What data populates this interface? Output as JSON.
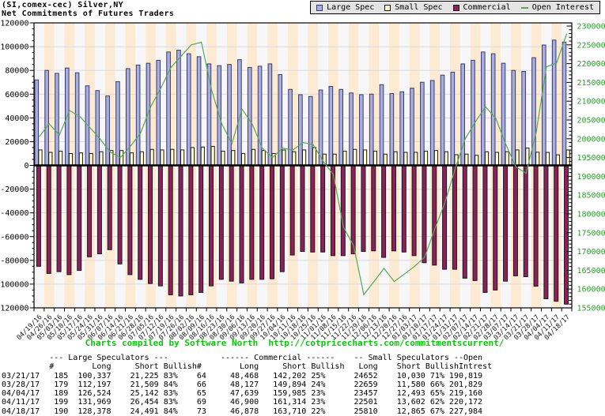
{
  "title": {
    "line1": "(SI,comex-cec) Silver,NY",
    "line2": "Net Commitments of Futures Traders"
  },
  "legend": [
    {
      "label": "Large Spec",
      "swatch": "square",
      "fill": "#a9aedd",
      "border": "#3a3a6e"
    },
    {
      "label": "Small Spec",
      "swatch": "square",
      "fill": "#ffffd0",
      "border": "#1a1a1a"
    },
    {
      "label": "Commercial",
      "swatch": "square",
      "fill": "#8b2159",
      "border": "#1a1a1a"
    },
    {
      "label": "Open Interest",
      "swatch": "line",
      "fill": "#58a858",
      "border": "#58a858"
    }
  ],
  "chart_data": {
    "type": "bar",
    "title": "Net Commitments of Futures Traders",
    "categories": [
      "04/19/16",
      "04/26/16",
      "05/03/16",
      "05/10/16",
      "05/17/16",
      "05/24/16",
      "05/31/16",
      "06/07/16",
      "06/14/16",
      "06/21/16",
      "06/28/16",
      "07/05/16",
      "07/12/16",
      "07/19/16",
      "07/26/16",
      "08/02/16",
      "08/09/16",
      "08/16/16",
      "08/23/16",
      "08/30/16",
      "09/06/16",
      "09/13/16",
      "09/20/16",
      "09/27/16",
      "10/04/16",
      "10/11/16",
      "10/18/16",
      "10/25/16",
      "11/01/16",
      "11/08/16",
      "11/15/16",
      "11/22/16",
      "11/29/16",
      "12/06/16",
      "12/13/16",
      "12/20/16",
      "12/27/16",
      "01/03/17",
      "01/10/17",
      "01/17/17",
      "01/24/17",
      "01/31/17",
      "02/07/17",
      "02/14/17",
      "02/21/17",
      "02/28/17",
      "03/07/17",
      "03/14/17",
      "03/21/17",
      "03/28/17",
      "04/04/17",
      "04/11/17",
      "04/18/17"
    ],
    "series": [
      {
        "name": "Large Spec",
        "type": "bar",
        "axis": "left",
        "color": "#a9aedd",
        "stroke": "#3a3a6e",
        "values": [
          72000,
          80000,
          77500,
          82000,
          78000,
          67000,
          63000,
          58500,
          70500,
          81500,
          84500,
          86000,
          88500,
          95500,
          97000,
          94000,
          91500,
          85500,
          84000,
          85000,
          89000,
          82500,
          83500,
          85500,
          76500,
          64000,
          59500,
          58000,
          63500,
          66500,
          64000,
          61000,
          59500,
          60000,
          68000,
          60500,
          62000,
          65000,
          70000,
          71500,
          76000,
          78500,
          85500,
          88500,
          95500,
          94000,
          86000,
          80000,
          79112,
          90688,
          101382,
          105515,
          103887
        ]
      },
      {
        "name": "Small Spec",
        "type": "bar",
        "axis": "left",
        "color": "#ffffd0",
        "stroke": "#1a1a1a",
        "values": [
          13000,
          11000,
          12000,
          10000,
          10500,
          10000,
          11500,
          12500,
          12500,
          10500,
          11500,
          13500,
          13000,
          13500,
          13000,
          15000,
          15500,
          16000,
          12000,
          12500,
          10000,
          13500,
          12500,
          10000,
          13000,
          11500,
          13000,
          15000,
          9500,
          9500,
          12000,
          13500,
          13000,
          12000,
          9500,
          11500,
          11000,
          11000,
          12000,
          12500,
          11500,
          9000,
          9500,
          8500,
          11500,
          11000,
          11500,
          13000,
          14622,
          11079,
          10964,
          8899,
          12945
        ]
      },
      {
        "name": "Commercial",
        "type": "bar",
        "axis": "left",
        "color": "#8b2159",
        "stroke": "#1a1a1a",
        "values": [
          -85000,
          -91000,
          -89500,
          -92000,
          -88500,
          -77000,
          -74500,
          -71000,
          -83000,
          -92000,
          -96000,
          -99500,
          -101500,
          -109000,
          -110000,
          -109000,
          -107000,
          -101500,
          -96000,
          -97500,
          -99000,
          -96000,
          -96000,
          -95500,
          -89500,
          -75500,
          -72500,
          -73000,
          -73000,
          -76000,
          -76000,
          -74500,
          -72500,
          -72000,
          -77500,
          -72000,
          -73000,
          -76000,
          -82000,
          -84000,
          -87500,
          -87500,
          -95000,
          -97000,
          -107000,
          -105000,
          -97500,
          -93000,
          -93734,
          -101767,
          -112346,
          -114414,
          -116832
        ]
      },
      {
        "name": "Open Interest",
        "type": "line",
        "axis": "right",
        "color": "#58a858",
        "values": [
          200500,
          204000,
          201000,
          207500,
          206000,
          203000,
          200000,
          196500,
          195000,
          198000,
          201500,
          208500,
          213500,
          219000,
          222000,
          225000,
          225700,
          213000,
          204000,
          198700,
          207900,
          204000,
          197500,
          195000,
          197500,
          197000,
          199000,
          198500,
          194000,
          190500,
          176500,
          171500,
          158500,
          162000,
          165500,
          162000,
          164000,
          166000,
          168500,
          176000,
          183000,
          192000,
          200000,
          204500,
          208500,
          205500,
          198500,
          192500,
          190819,
          201829,
          219160,
          220172,
          227984
        ]
      }
    ],
    "left_axis": {
      "min": -120000,
      "max": 120000,
      "tick_step": 20000,
      "minor_step": 5000,
      "label_color": "#000000"
    },
    "right_axis": {
      "min": 155000,
      "max": 230000,
      "tick_step": 5000,
      "minor_step": 1000,
      "label_color": "#2e9b2e"
    },
    "grid": true,
    "legend_position": "top-right",
    "colors": {
      "band_a": "#f7f7f9",
      "band_b": "#fcead3",
      "grid": "#d9d9de",
      "frame": "#000000",
      "zero_line": "#000000",
      "x_label": "#111111"
    }
  },
  "footer_note": "Charts compiled by Software North  http://cotpricecharts.com/commitmentscurrent/",
  "table": {
    "group_headers": [
      "--- Large Speculators ---",
      "------ Commercial ------",
      "-- Small Speculators --",
      "Open"
    ],
    "columns": [
      "#",
      "Long",
      "Short",
      "Bullish",
      "#",
      "Long",
      "Short",
      "Bullish",
      "Long",
      "Short",
      "Bullish",
      "Intrest"
    ],
    "rows": [
      [
        "03/21/17",
        "185",
        "100,337",
        "21,225",
        "83%",
        "64",
        "48,468",
        "142,202",
        "25%",
        "24652",
        "10,030",
        "71%",
        "190,819"
      ],
      [
        "03/28/17",
        "179",
        "112,197",
        "21,509",
        "84%",
        "66",
        "48,127",
        "149,894",
        "24%",
        "22659",
        "11,580",
        "66%",
        "201,829"
      ],
      [
        "04/04/17",
        "189",
        "126,524",
        "25,142",
        "83%",
        "65",
        "47,639",
        "159,985",
        "23%",
        "23457",
        "12,493",
        "65%",
        "219,160"
      ],
      [
        "04/11/17",
        "199",
        "131,969",
        "26,454",
        "83%",
        "69",
        "46,900",
        "161,314",
        "23%",
        "22501",
        "13,602",
        "62%",
        "220,172"
      ],
      [
        "04/18/17",
        "190",
        "128,378",
        "24,491",
        "84%",
        "73",
        "46,878",
        "163,710",
        "22%",
        "25810",
        "12,865",
        "67%",
        "227,984"
      ]
    ]
  }
}
